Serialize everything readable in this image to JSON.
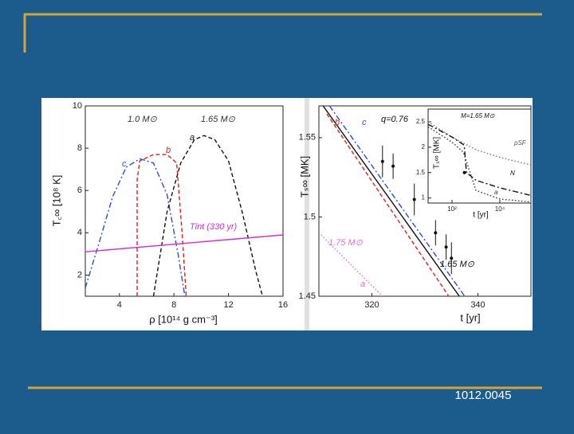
{
  "chart_data": [
    {
      "type": "line",
      "xlabel": "ρ [10¹⁴ g cm⁻³]",
      "ylabel": "T꜀∞ [10⁸ K]",
      "xlim": [
        1.5,
        16
      ],
      "ylim": [
        1,
        10
      ],
      "xticks": [
        4,
        8,
        12,
        16
      ],
      "yticks": [
        2,
        4,
        6,
        8,
        10
      ],
      "annotations": [
        "1.0 M⊙",
        "1.65 M⊙",
        "a",
        "b",
        "c",
        "Tint (330 yr)"
      ],
      "series": [
        {
          "color": "#2f4fc0",
          "style": "dashdot",
          "x": [
            1.5,
            2.5,
            3.5,
            4.5,
            5.5,
            6.5,
            7.5,
            8.3,
            8.8
          ],
          "values": [
            1.4,
            3.5,
            5.7,
            7.1,
            7.5,
            7.3,
            5.8,
            3,
            1
          ]
        },
        {
          "color": "#e02020",
          "style": "dashed",
          "x": [
            5.3,
            5.3,
            5.5,
            6.5,
            7.5,
            8.2,
            8.6,
            8.9
          ],
          "values": [
            1,
            6.5,
            7.4,
            7.7,
            7.7,
            7.3,
            4,
            1
          ]
        },
        {
          "color": "#111111",
          "style": "dashed",
          "x": [
            6.5,
            7.5,
            8.5,
            9.5,
            10.2,
            11,
            12,
            13,
            14,
            14.5
          ],
          "values": [
            1,
            5,
            7.3,
            8.4,
            8.6,
            8.4,
            7.4,
            5,
            2.2,
            1
          ]
        },
        {
          "color": "#d030d0",
          "style": "solid",
          "x": [
            1.5,
            16
          ],
          "values": [
            3.1,
            3.9
          ]
        }
      ]
    },
    {
      "type": "line",
      "xlabel": "t [yr]",
      "ylabel": "Tₛ∞ [MK]",
      "xlim": [
        310,
        350
      ],
      "ylim": [
        1.45,
        1.57
      ],
      "xticks": [
        320,
        340
      ],
      "yticks": [
        1.45,
        1.5,
        1.55
      ],
      "annotations": [
        "b",
        "c",
        "q=0.76",
        "1.75 M⊙",
        "a",
        "1.65 M⊙"
      ],
      "series": [
        {
          "color": "#111111",
          "style": "solid",
          "x": [
            310.8,
            336.5
          ],
          "values": [
            1.57,
            1.45
          ]
        },
        {
          "color": "#2f4fc0",
          "style": "dashdot",
          "x": [
            312,
            337.5
          ],
          "values": [
            1.57,
            1.45
          ]
        },
        {
          "color": "#e02020",
          "style": "dashed",
          "x": [
            311.5,
            334.5
          ],
          "values": [
            1.565,
            1.45
          ]
        },
        {
          "color": "#e070c0",
          "style": "dotted",
          "x": [
            310,
            322
          ],
          "values": [
            1.49,
            1.45
          ]
        },
        {
          "color": "#111111",
          "style": "points",
          "x": [
            322,
            324,
            328,
            332,
            334,
            335
          ],
          "values": [
            1.535,
            1.532,
            1.511,
            1.49,
            1.481,
            1.474
          ],
          "errors": [
            0.01,
            0.008,
            0.01,
            0.008,
            0.008,
            0.01
          ]
        }
      ]
    },
    {
      "type": "line",
      "xlabel": "t [yr]",
      "ylabel": "Tₛ∞ [MK]",
      "xscale": "log",
      "xlim": [
        10,
        200000
      ],
      "ylim": [
        0.9,
        2.75
      ],
      "xticks": [
        {
          "value": 100,
          "label": "10²"
        },
        {
          "value": 10000,
          "label": "10⁴"
        }
      ],
      "yticks": [
        1,
        1.5,
        2,
        2.5
      ],
      "annotations": [
        "M=1.65 M⊙",
        "pSF",
        "N",
        "a"
      ],
      "series": [
        {
          "color": "#777777",
          "style": "dotted",
          "x": [
            10,
            100,
            1000,
            10000,
            200000
          ],
          "values": [
            2.5,
            2.2,
            1.95,
            1.8,
            1.65
          ]
        },
        {
          "color": "#111111",
          "style": "dashdot",
          "x": [
            10,
            100,
            300,
            330,
            400,
            1000,
            10000,
            200000
          ],
          "values": [
            2.45,
            2.2,
            2.05,
            2.0,
            1.5,
            1.35,
            1.2,
            1.05
          ]
        },
        {
          "color": "#333333",
          "style": "dotted",
          "x": [
            10,
            100,
            300,
            1000,
            10000,
            200000
          ],
          "values": [
            2.4,
            2.1,
            1.9,
            1.15,
            0.98,
            0.92
          ]
        },
        {
          "color": "#111111",
          "style": "points",
          "x": [
            330
          ],
          "values": [
            1.5
          ]
        }
      ]
    }
  ],
  "footer": {
    "text": "1012.0045"
  }
}
